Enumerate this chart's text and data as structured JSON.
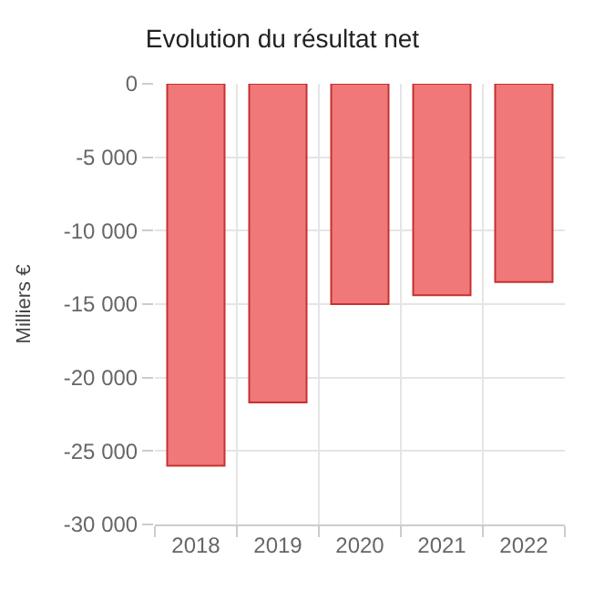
{
  "chart_data": {
    "type": "bar",
    "title": "Evolution du résultat net",
    "ylabel": "Milliers €",
    "categories": [
      "2018",
      "2019",
      "2020",
      "2021",
      "2022"
    ],
    "series": [
      {
        "color": "#f07878",
        "values": [
          -26000,
          -21700,
          -15000,
          -14400,
          -13500
        ]
      }
    ],
    "ylim": [
      -30000,
      0
    ],
    "yticks": [
      {
        "value": -30000,
        "label": "-30 000"
      },
      {
        "value": -25000,
        "label": "-25 000"
      },
      {
        "value": -20000,
        "label": "-20 000"
      },
      {
        "value": -15000,
        "label": "-15 000"
      },
      {
        "value": -10000,
        "label": "-10 000"
      },
      {
        "value": -5000,
        "label": "-5 000"
      },
      0
    ],
    "grid": true
  }
}
